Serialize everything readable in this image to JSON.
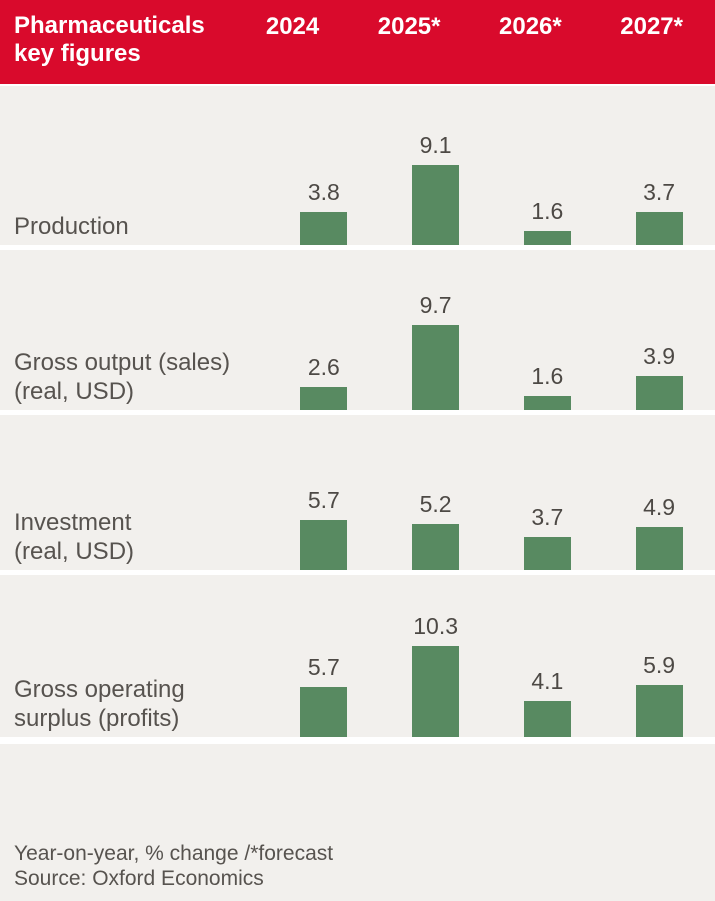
{
  "theme": {
    "header-bg": "#d90a2c",
    "header-text": "#ffffff",
    "row-bg": "#f2f0ed",
    "bar-color": "#588a61",
    "label-color": "#57534f",
    "value-color": "#4d4945",
    "page-bg": "#ffffff"
  },
  "header": {
    "title": "Pharmaceuticals key figures"
  },
  "chart_data": {
    "type": "bar",
    "title": "Pharmaceuticals key figures",
    "columns": [
      "2024",
      "2025*",
      "2026*",
      "2027*"
    ],
    "rows": [
      {
        "label": "Production",
        "label_lines": [
          "Production"
        ],
        "values": [
          "3.8",
          "9.1",
          "1.6",
          "3.7"
        ]
      },
      {
        "label": "Gross output (sales) (real, USD)",
        "label_lines": [
          "Gross output (sales)",
          "(real, USD)"
        ],
        "values": [
          "2.6",
          "9.7",
          "1.6",
          "3.9"
        ]
      },
      {
        "label": "Investment (real, USD)",
        "label_lines": [
          "Investment",
          "(real, USD)"
        ],
        "values": [
          "5.7",
          "5.2",
          "3.7",
          "4.9"
        ]
      },
      {
        "label": "Gross operating surplus (profits)",
        "label_lines": [
          "Gross operating",
          "surplus (profits)"
        ],
        "values": [
          "5.7",
          "10.3",
          "4.1",
          "5.9"
        ]
      }
    ],
    "ylabel": "Year-on-year, % change",
    "legend": "none",
    "grid": "off",
    "ylim": [
      0,
      10.3
    ]
  },
  "footer": {
    "note": "Year-on-year, % change /*forecast",
    "source": "Source: Oxford Economics"
  }
}
